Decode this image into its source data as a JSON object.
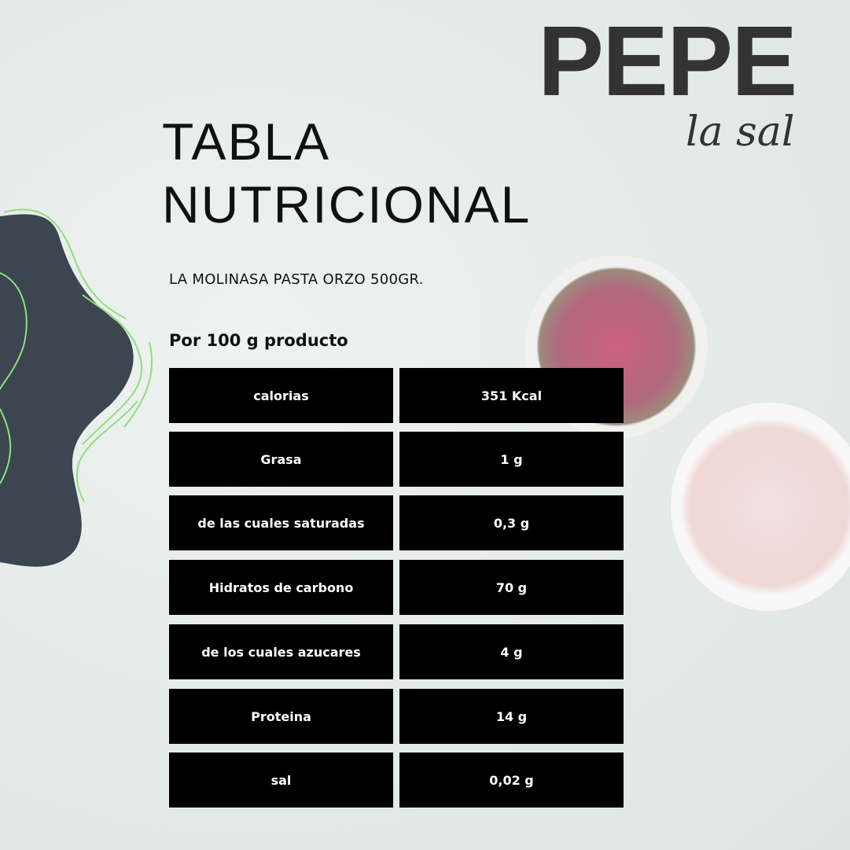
{
  "brand": {
    "name": "PEPE",
    "tagline": "la sal"
  },
  "title": {
    "line1": "TABLA",
    "line2": "NUTRICIONAL"
  },
  "product": "LA MOLINASA PASTA ORZO 500GR.",
  "serving": "Por 100 g producto",
  "colors": {
    "table_bg": "#000000",
    "table_text": "#ffffff",
    "blob": "#3d4550",
    "accent_lines": "#8fe07a"
  },
  "rows": [
    {
      "label": "calorias",
      "value": "351 Kcal"
    },
    {
      "label": "Grasa",
      "value": "1 g"
    },
    {
      "label": "de las cuales saturadas",
      "value": "0,3 g"
    },
    {
      "label": "Hidratos de carbono",
      "value": "70 g"
    },
    {
      "label": "de los cuales azucares",
      "value": "4 g"
    },
    {
      "label": "Proteina",
      "value": "14 g"
    },
    {
      "label": "sal",
      "value": "0,02 g"
    }
  ]
}
